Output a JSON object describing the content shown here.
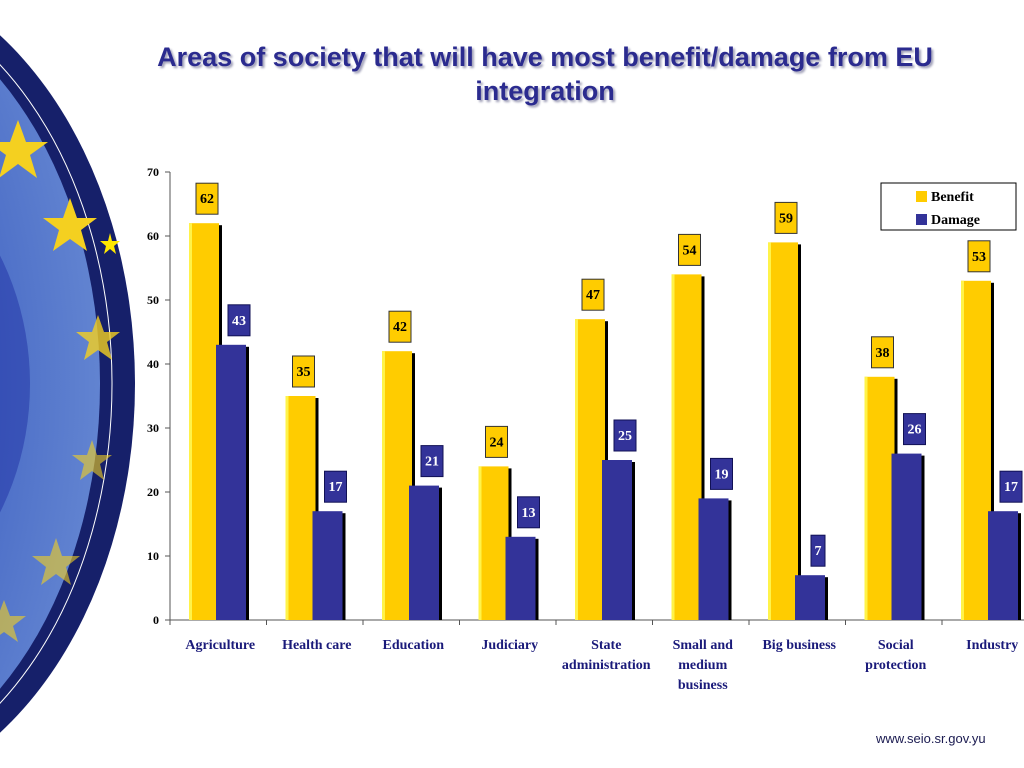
{
  "slide": {
    "footer_url": "www.seio.sr.gov.yu"
  },
  "colors": {
    "benefit": "#ffcc00",
    "damage": "#333399",
    "title": "#2b2b8f",
    "category_text": "#1a1a7a",
    "flag_blue": "#1a237e"
  },
  "chart_data": {
    "type": "bar",
    "title": "Areas of society that will have most benefit/damage from EU integration",
    "xlabel": "",
    "ylabel": "",
    "ylim": [
      0,
      70
    ],
    "yticks": [
      0,
      10,
      20,
      30,
      40,
      50,
      60,
      70
    ],
    "grid": false,
    "legend_position": "top-right",
    "categories": [
      [
        "Agriculture"
      ],
      [
        "Health care"
      ],
      [
        "Education"
      ],
      [
        "Judiciary"
      ],
      [
        "State",
        "administration"
      ],
      [
        "Small and",
        "medium",
        "business"
      ],
      [
        "Big business"
      ],
      [
        "Social",
        "protection"
      ],
      [
        "Industry"
      ]
    ],
    "series": [
      {
        "name": "Benefit",
        "values": [
          62,
          35,
          42,
          24,
          47,
          54,
          59,
          38,
          53
        ]
      },
      {
        "name": "Damage",
        "values": [
          43,
          17,
          21,
          13,
          25,
          19,
          7,
          26,
          17
        ]
      }
    ],
    "data_labels": true
  }
}
